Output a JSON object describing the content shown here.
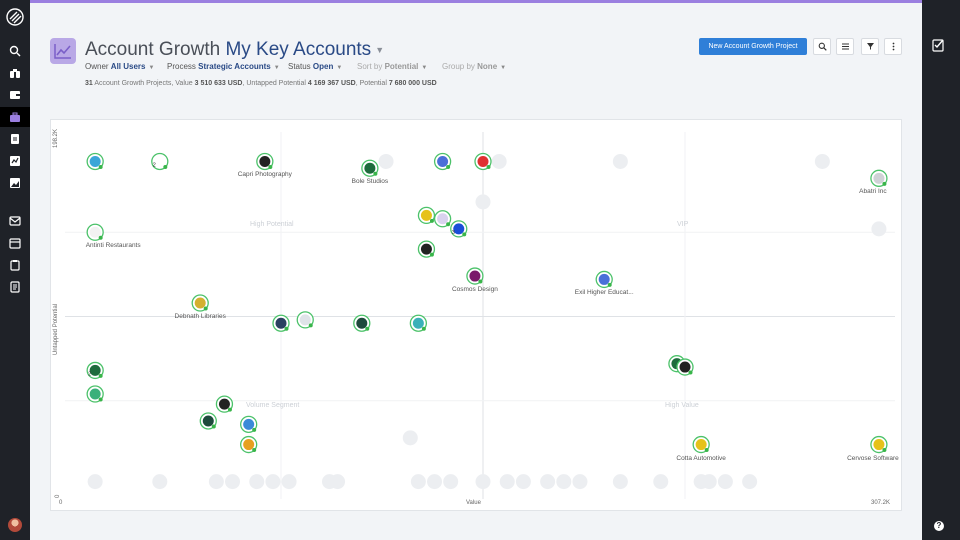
{
  "header": {
    "title_prefix": "Account Growth",
    "title_view": "My Key Accounts",
    "new_button": "New Account Growth Project"
  },
  "filters": [
    {
      "label": "Owner",
      "value": "All Users"
    },
    {
      "label": "Process",
      "value": "Strategic Accounts"
    },
    {
      "label": "Status",
      "value": "Open"
    },
    {
      "label": "Sort by",
      "value": "Potential"
    },
    {
      "label": "Group by",
      "value": "None"
    }
  ],
  "summary": {
    "count": "31",
    "text1": " Account Growth Projects, Value ",
    "value": "3 510 633 USD",
    "text2": ", Untapped Potential ",
    "untapped": "4 169 367 USD",
    "text3": ", Potential ",
    "potential": "7 680 000 USD"
  },
  "chart": {
    "y_axis_label": "Untapped Potential",
    "x_axis_label": "Value",
    "y_max": "198.2K",
    "y_min": "0",
    "x_min": "0",
    "x_max": "307.2K",
    "quadrants": [
      "High Potential",
      "VIP",
      "Volume Segment",
      "High Value"
    ]
  },
  "chart_data": {
    "type": "scatter",
    "x_range_label": [
      "0",
      "307.2K"
    ],
    "y_range_label": [
      "0",
      "198.2K"
    ],
    "points": [
      {
        "x": 0.02,
        "y": 0.96,
        "color": "#3aa6d8"
      },
      {
        "x": 0.1,
        "y": 0.96,
        "color": "#ffffff",
        "badge": "2"
      },
      {
        "x": 0.23,
        "y": 0.96,
        "color": "#222222",
        "label": "Capri Photography"
      },
      {
        "x": 0.36,
        "y": 0.94,
        "color": "#1e6b3c",
        "label": "Bole Studios"
      },
      {
        "x": 0.45,
        "y": 0.96,
        "color": "#4a6fd8"
      },
      {
        "x": 0.5,
        "y": 0.96,
        "color": "#e03030"
      },
      {
        "x": 0.99,
        "y": 0.91,
        "color": "#cfd2d6",
        "label": "Abatri Inc"
      },
      {
        "x": 0.43,
        "y": 0.8,
        "color": "#e6c21a"
      },
      {
        "x": 0.45,
        "y": 0.79,
        "color": "#d9d2ee"
      },
      {
        "x": 0.47,
        "y": 0.76,
        "color": "#1a4fd8",
        "badge": "3"
      },
      {
        "x": 0.02,
        "y": 0.75,
        "color": "#f2f2f2",
        "label": "Antinti Restaurants"
      },
      {
        "x": 0.43,
        "y": 0.7,
        "color": "#222222"
      },
      {
        "x": 0.49,
        "y": 0.62,
        "color": "#7a1a6a",
        "label": "Cosmos Design"
      },
      {
        "x": 0.65,
        "y": 0.61,
        "color": "#4a6fd8",
        "label": "Exil Higher Educat..."
      },
      {
        "x": 0.15,
        "y": 0.54,
        "color": "#d4b030",
        "label": "Debnath Libraries"
      },
      {
        "x": 0.25,
        "y": 0.48,
        "color": "#2a4060"
      },
      {
        "x": 0.28,
        "y": 0.49,
        "color": "#dfe3e8"
      },
      {
        "x": 0.35,
        "y": 0.48,
        "color": "#1e4a3c"
      },
      {
        "x": 0.42,
        "y": 0.48,
        "color": "#3ab0b8"
      },
      {
        "x": 0.74,
        "y": 0.36,
        "color": "#1e6b3c"
      },
      {
        "x": 0.75,
        "y": 0.35,
        "color": "#222222"
      },
      {
        "x": 0.02,
        "y": 0.34,
        "color": "#1e6b3c",
        "badge": "2"
      },
      {
        "x": 0.02,
        "y": 0.27,
        "color": "#3ab07a"
      },
      {
        "x": 0.18,
        "y": 0.24,
        "color": "#222222"
      },
      {
        "x": 0.16,
        "y": 0.19,
        "color": "#1e4a3c"
      },
      {
        "x": 0.21,
        "y": 0.18,
        "color": "#3a8ad8"
      },
      {
        "x": 0.77,
        "y": 0.12,
        "color": "#e6c21a",
        "label": "Cotta Automotive"
      },
      {
        "x": 0.99,
        "y": 0.12,
        "color": "#e6c21a",
        "label": "Cervose Software"
      },
      {
        "x": 0.21,
        "y": 0.12,
        "color": "#e6a020"
      }
    ]
  }
}
